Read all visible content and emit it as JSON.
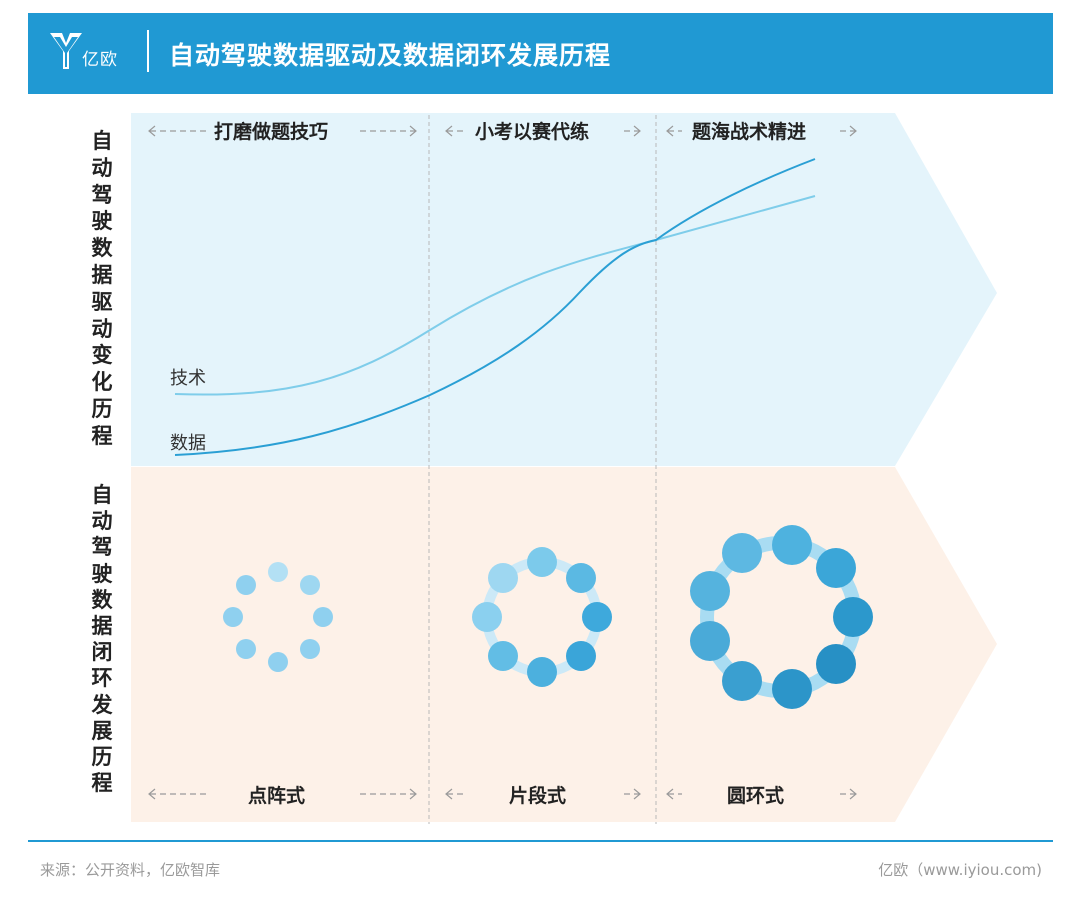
{
  "header": {
    "logo_text": "亿欧",
    "title": "自动驾驶数据驱动及数据闭环发展历程"
  },
  "rows": {
    "top_label": "自动驾驶数据驱动变化历程",
    "bottom_label": "自动驾驶数据闭环发展历程"
  },
  "phases": [
    "打磨做题技巧",
    "小考以赛代练",
    "题海战术精进"
  ],
  "modes": [
    "点阵式",
    "片段式",
    "圆环式"
  ],
  "curves": {
    "tech_label": "技术",
    "data_label": "数据",
    "tech_color": "#7fcdea",
    "data_color": "#2a9fd4"
  },
  "colors": {
    "header": "#2099d3",
    "top_band": "#e4f4fb",
    "bottom_band": "#fdf1e8",
    "dot_light": "#8fd0ef",
    "dot_dark": "#1e86bd"
  },
  "footer": {
    "source": "来源：公开资料，亿欧智库",
    "credit": "亿欧（www.iyiou.com)"
  }
}
